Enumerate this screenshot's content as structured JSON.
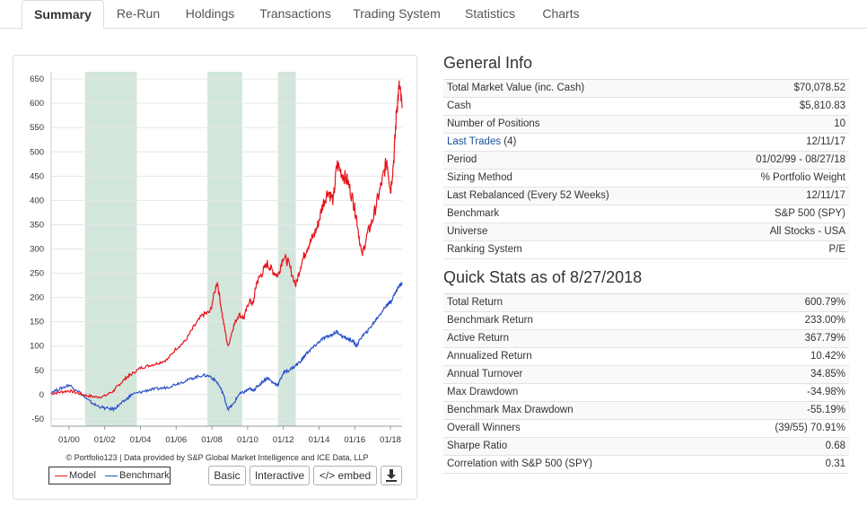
{
  "tabs": [
    {
      "label": "Summary",
      "active": true
    },
    {
      "label": "Re-Run"
    },
    {
      "label": "Holdings"
    },
    {
      "label": "Transactions"
    },
    {
      "label": "Trading System"
    },
    {
      "label": "Statistics"
    },
    {
      "label": "Charts"
    }
  ],
  "general_info": {
    "title": "General Info",
    "rows": [
      {
        "key": "Total Market Value (inc. Cash)",
        "value": "$70,078.52"
      },
      {
        "key": "Cash",
        "value": "$5,810.83"
      },
      {
        "key": "Number of Positions",
        "value": "10"
      },
      {
        "key": "Last Trades",
        "key_suffix": "(4)",
        "value": "12/11/17"
      },
      {
        "key": "Period",
        "value": "01/02/99 - 08/27/18"
      },
      {
        "key": "Sizing Method",
        "value": "% Portfolio Weight"
      },
      {
        "key": "Last Rebalanced (Every 52 Weeks)",
        "value": "12/11/17"
      },
      {
        "key": "Benchmark",
        "value": "S&P 500 (SPY)"
      },
      {
        "key": "Universe",
        "value": "All Stocks - USA"
      },
      {
        "key": "Ranking System",
        "value": "P/E"
      }
    ]
  },
  "quick_stats": {
    "title": "Quick Stats as of 8/27/2018",
    "rows": [
      {
        "key": "Total Return",
        "value": "600.79%"
      },
      {
        "key": "Benchmark Return",
        "value": "233.00%"
      },
      {
        "key": "Active Return",
        "value": "367.79%"
      },
      {
        "key": "Annualized Return",
        "value": "10.42%"
      },
      {
        "key": "Annual Turnover",
        "value": "34.85%"
      },
      {
        "key": "Max Drawdown",
        "value": "-34.98%"
      },
      {
        "key": "Benchmark Max Drawdown",
        "value": "-55.19%"
      },
      {
        "key": "Overall Winners",
        "value": "(39/55) 70.91%"
      },
      {
        "key": "Sharpe Ratio",
        "value": "0.68"
      },
      {
        "key": "Correlation with S&P 500 (SPY)",
        "value": "0.31"
      }
    ]
  },
  "chart_footer": {
    "credit": "© Portfolio123 | Data provided by S&P Global Market Intelligence and ICE Data, LLP",
    "legend_model": "Model",
    "legend_benchmark": "Benchmark",
    "basic_label": "Basic",
    "interactive_label": "Interactive",
    "embed_label": "</> embed",
    "download_icon": "download-icon"
  },
  "colors": {
    "model": "#e8141c",
    "benchmark": "#2a4fc8",
    "shade": "#d3e6db",
    "link": "#1a4f99",
    "negative": "#d0021b"
  },
  "chart_data": {
    "type": "line",
    "xlabel": "",
    "ylabel": "",
    "x_range": [
      1999.0,
      2018.65
    ],
    "ylim": [
      -65,
      665
    ],
    "y_ticks": [
      650,
      600,
      550,
      500,
      450,
      400,
      350,
      300,
      250,
      200,
      150,
      100,
      50,
      0,
      -50
    ],
    "x_ticks": [
      {
        "label": "01/00",
        "x": 2000.0
      },
      {
        "label": "01/02",
        "x": 2002.0
      },
      {
        "label": "01/04",
        "x": 2004.0
      },
      {
        "label": "01/06",
        "x": 2006.0
      },
      {
        "label": "01/08",
        "x": 2008.0
      },
      {
        "label": "01/10",
        "x": 2010.0
      },
      {
        "label": "01/12",
        "x": 2012.0
      },
      {
        "label": "01/14",
        "x": 2014.0
      },
      {
        "label": "01/16",
        "x": 2016.0
      },
      {
        "label": "01/18",
        "x": 2018.0
      }
    ],
    "shaded_periods": [
      [
        2000.9,
        2003.8
      ],
      [
        2007.75,
        2009.7
      ],
      [
        2011.7,
        2012.7
      ]
    ],
    "series": [
      {
        "name": "Model",
        "x": [
          1999.0,
          1999.5,
          2000.0,
          2000.5,
          2001.0,
          2001.5,
          2002.0,
          2002.5,
          2002.8,
          2003.2,
          2003.5,
          2004.0,
          2004.5,
          2005.0,
          2005.5,
          2006.0,
          2006.5,
          2007.0,
          2007.5,
          2007.9,
          2008.3,
          2008.6,
          2008.9,
          2009.2,
          2009.5,
          2009.8,
          2010.1,
          2010.3,
          2010.5,
          2010.8,
          2011.1,
          2011.4,
          2011.7,
          2012.0,
          2012.3,
          2012.7,
          2013.0,
          2013.3,
          2013.6,
          2013.9,
          2014.2,
          2014.5,
          2014.8,
          2015.0,
          2015.3,
          2015.6,
          2015.9,
          2016.1,
          2016.4,
          2016.7,
          2017.0,
          2017.3,
          2017.6,
          2017.8,
          2018.0,
          2018.2,
          2018.35,
          2018.5,
          2018.65
        ],
        "values": [
          2,
          5,
          8,
          3,
          -2,
          -5,
          -3,
          8,
          20,
          35,
          42,
          55,
          60,
          65,
          72,
          95,
          110,
          140,
          165,
          170,
          235,
          160,
          98,
          140,
          165,
          158,
          195,
          185,
          230,
          250,
          270,
          255,
          245,
          285,
          270,
          225,
          270,
          300,
          320,
          345,
          390,
          420,
          400,
          475,
          455,
          440,
          400,
          365,
          285,
          330,
          360,
          405,
          450,
          485,
          420,
          490,
          590,
          635,
          590
        ]
      },
      {
        "name": "Benchmark",
        "x": [
          1999.0,
          1999.5,
          2000.0,
          2000.5,
          2001.0,
          2001.5,
          2002.0,
          2002.5,
          2002.8,
          2003.2,
          2003.5,
          2004.0,
          2004.5,
          2005.0,
          2005.5,
          2006.0,
          2006.5,
          2007.0,
          2007.5,
          2007.9,
          2008.3,
          2008.6,
          2008.9,
          2009.2,
          2009.5,
          2009.8,
          2010.1,
          2010.3,
          2010.5,
          2010.8,
          2011.1,
          2011.4,
          2011.7,
          2012.0,
          2012.3,
          2012.7,
          2013.0,
          2013.3,
          2013.6,
          2013.9,
          2014.2,
          2014.5,
          2014.8,
          2015.0,
          2015.3,
          2015.6,
          2015.9,
          2016.1,
          2016.4,
          2016.7,
          2017.0,
          2017.3,
          2017.6,
          2017.8,
          2018.0,
          2018.2,
          2018.35,
          2018.5,
          2018.65
        ],
        "values": [
          5,
          12,
          20,
          8,
          -10,
          -22,
          -28,
          -30,
          -22,
          -10,
          0,
          5,
          10,
          12,
          15,
          22,
          28,
          35,
          40,
          38,
          25,
          5,
          -30,
          -20,
          0,
          5,
          12,
          8,
          15,
          25,
          35,
          25,
          20,
          45,
          50,
          60,
          70,
          85,
          95,
          105,
          115,
          120,
          125,
          130,
          120,
          115,
          110,
          100,
          120,
          130,
          145,
          160,
          175,
          185,
          190,
          205,
          215,
          225,
          230
        ]
      }
    ]
  }
}
